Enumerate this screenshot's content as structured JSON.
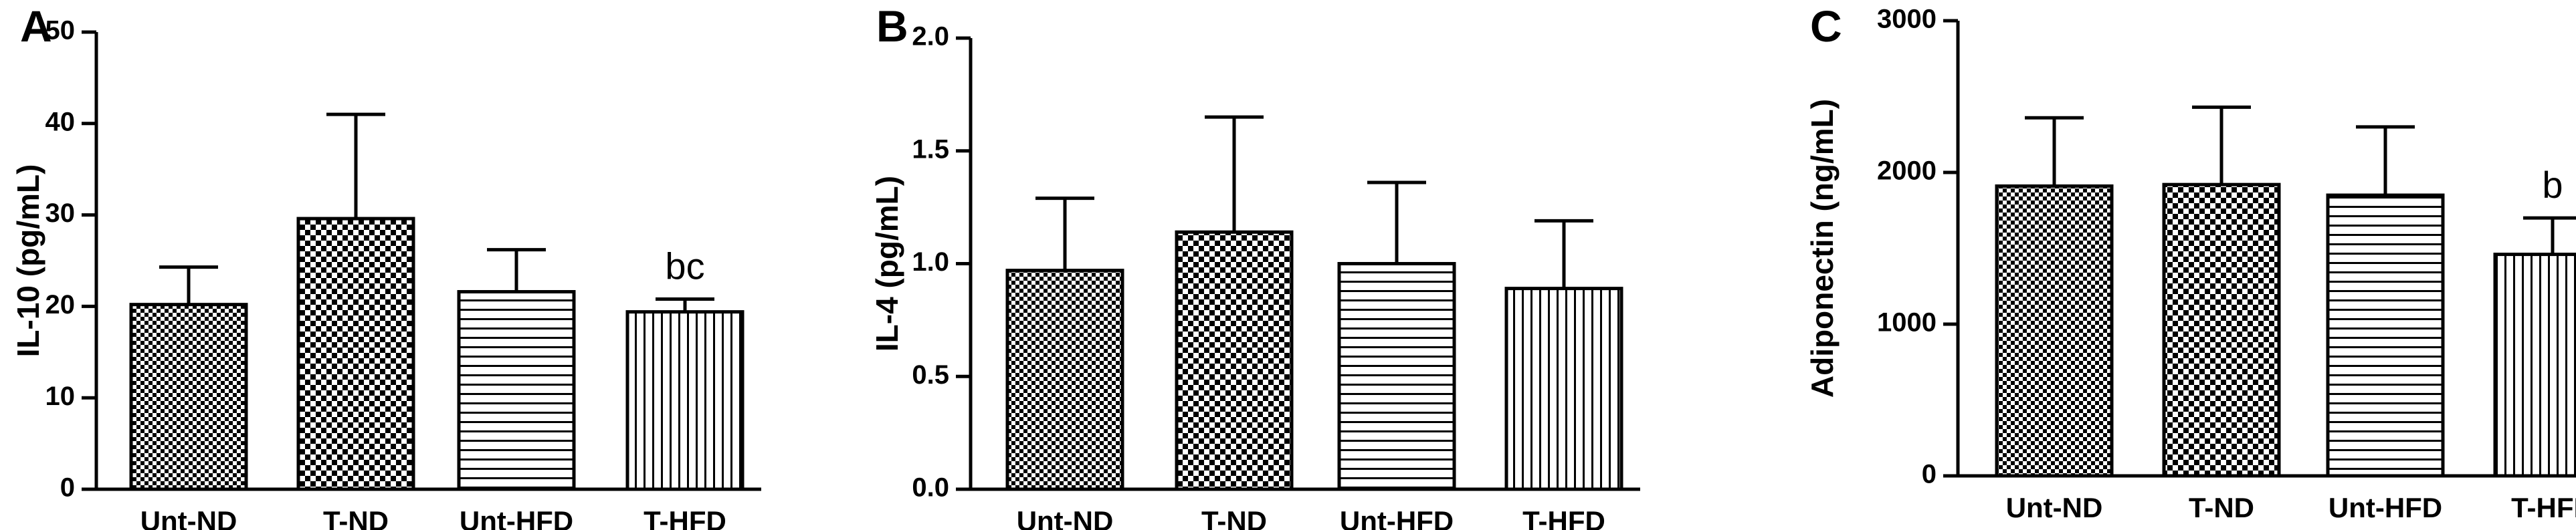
{
  "chart_data": [
    {
      "type": "bar",
      "panel_label": "A",
      "ylabel": "IL-10 (pg/mL)",
      "xlabel": "",
      "categories": [
        "Unt-ND",
        "T-ND",
        "Unt-HFD",
        "T-HFD"
      ],
      "values": [
        20.2,
        29.6,
        21.6,
        19.4
      ],
      "errors": [
        4.1,
        11.4,
        4.6,
        1.4
      ],
      "annotations": [
        "",
        "",
        "",
        "bc"
      ],
      "ylim": [
        0,
        50
      ],
      "yticks": [
        "0",
        "10",
        "20",
        "30",
        "40",
        "50"
      ],
      "patterns": [
        "checker",
        "checker-large",
        "horizontal",
        "vertical"
      ]
    },
    {
      "type": "bar",
      "panel_label": "B",
      "ylabel": "IL-4 (pg/mL)",
      "xlabel": "",
      "categories": [
        "Unt-ND",
        "T-ND",
        "Unt-HFD",
        "T-HFD"
      ],
      "values": [
        0.97,
        1.14,
        1.0,
        0.89
      ],
      "errors": [
        0.32,
        0.51,
        0.36,
        0.3
      ],
      "annotations": [
        "",
        "",
        "",
        ""
      ],
      "ylim": [
        0,
        2.0
      ],
      "yticks": [
        "0.0",
        "0.5",
        "1.0",
        "1.5",
        "2.0"
      ],
      "patterns": [
        "checker",
        "checker-large",
        "horizontal",
        "vertical"
      ]
    },
    {
      "type": "bar",
      "panel_label": "C",
      "ylabel": "Adiponectin (ng/mL)",
      "xlabel": "",
      "categories": [
        "Unt-ND",
        "T-ND",
        "Unt-HFD",
        "T-HFD"
      ],
      "values": [
        1910,
        1920,
        1850,
        1460
      ],
      "errors": [
        450,
        510,
        450,
        240
      ],
      "annotations": [
        "",
        "",
        "",
        "b"
      ],
      "ylim": [
        0,
        3000
      ],
      "yticks": [
        "0",
        "1000",
        "2000",
        "3000"
      ],
      "patterns": [
        "checker",
        "checker-large",
        "horizontal",
        "vertical"
      ]
    }
  ]
}
